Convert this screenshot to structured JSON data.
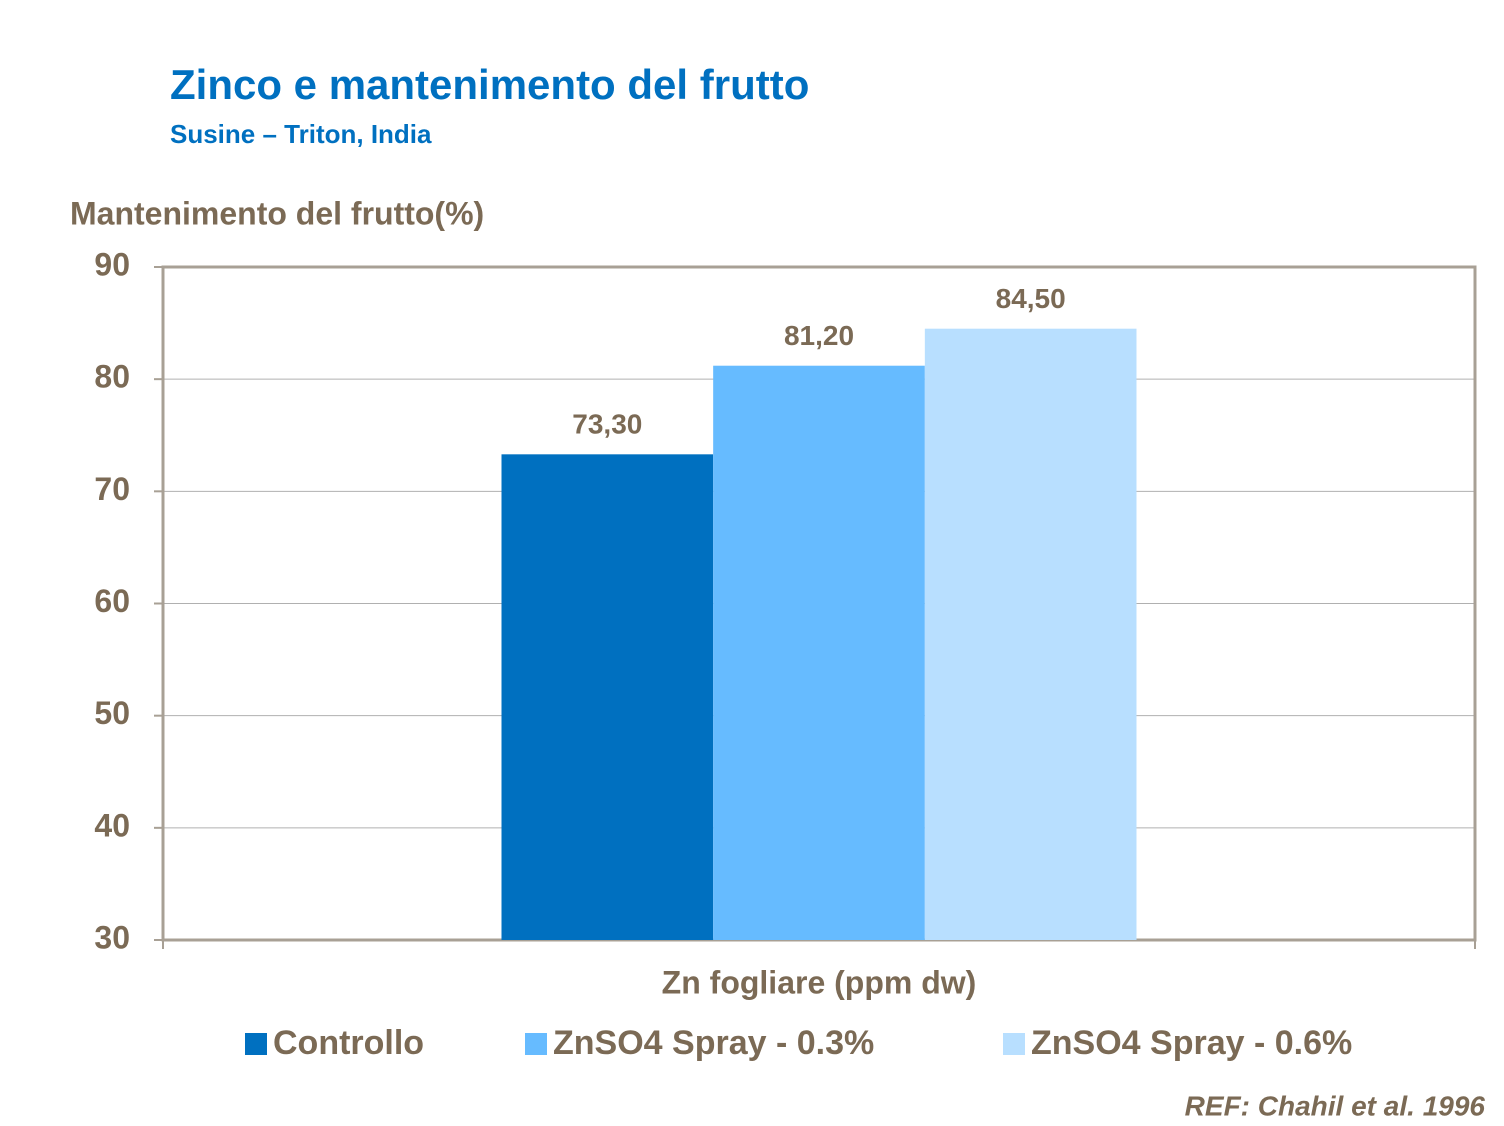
{
  "chart_data": {
    "type": "bar",
    "title": "Zinco e mantenimento del frutto",
    "subtitle": "Susine – Triton, India",
    "y_axis_label": "Mantenimento del frutto(%)",
    "x_axis_label": "Zn fogliare (ppm dw)",
    "categories": [
      null
    ],
    "series": [
      {
        "name": "Controllo",
        "color": "#0070c0",
        "values": [
          73.3
        ],
        "value_labels": [
          "73,30"
        ]
      },
      {
        "name": "ZnSO4 Spray - 0.3%",
        "color": "#66bbff",
        "values": [
          81.2
        ],
        "value_labels": [
          "81,20"
        ]
      },
      {
        "name": "ZnSO4 Spray - 0.6%",
        "color": "#b8dfff",
        "values": [
          84.5
        ],
        "value_labels": [
          "84,50"
        ]
      }
    ],
    "ylim": [
      30,
      90
    ],
    "yticks": [
      30,
      40,
      50,
      60,
      70,
      80,
      90
    ],
    "grid": true,
    "legend": "bottom",
    "reference": "REF: Chahil et al. 1996"
  }
}
